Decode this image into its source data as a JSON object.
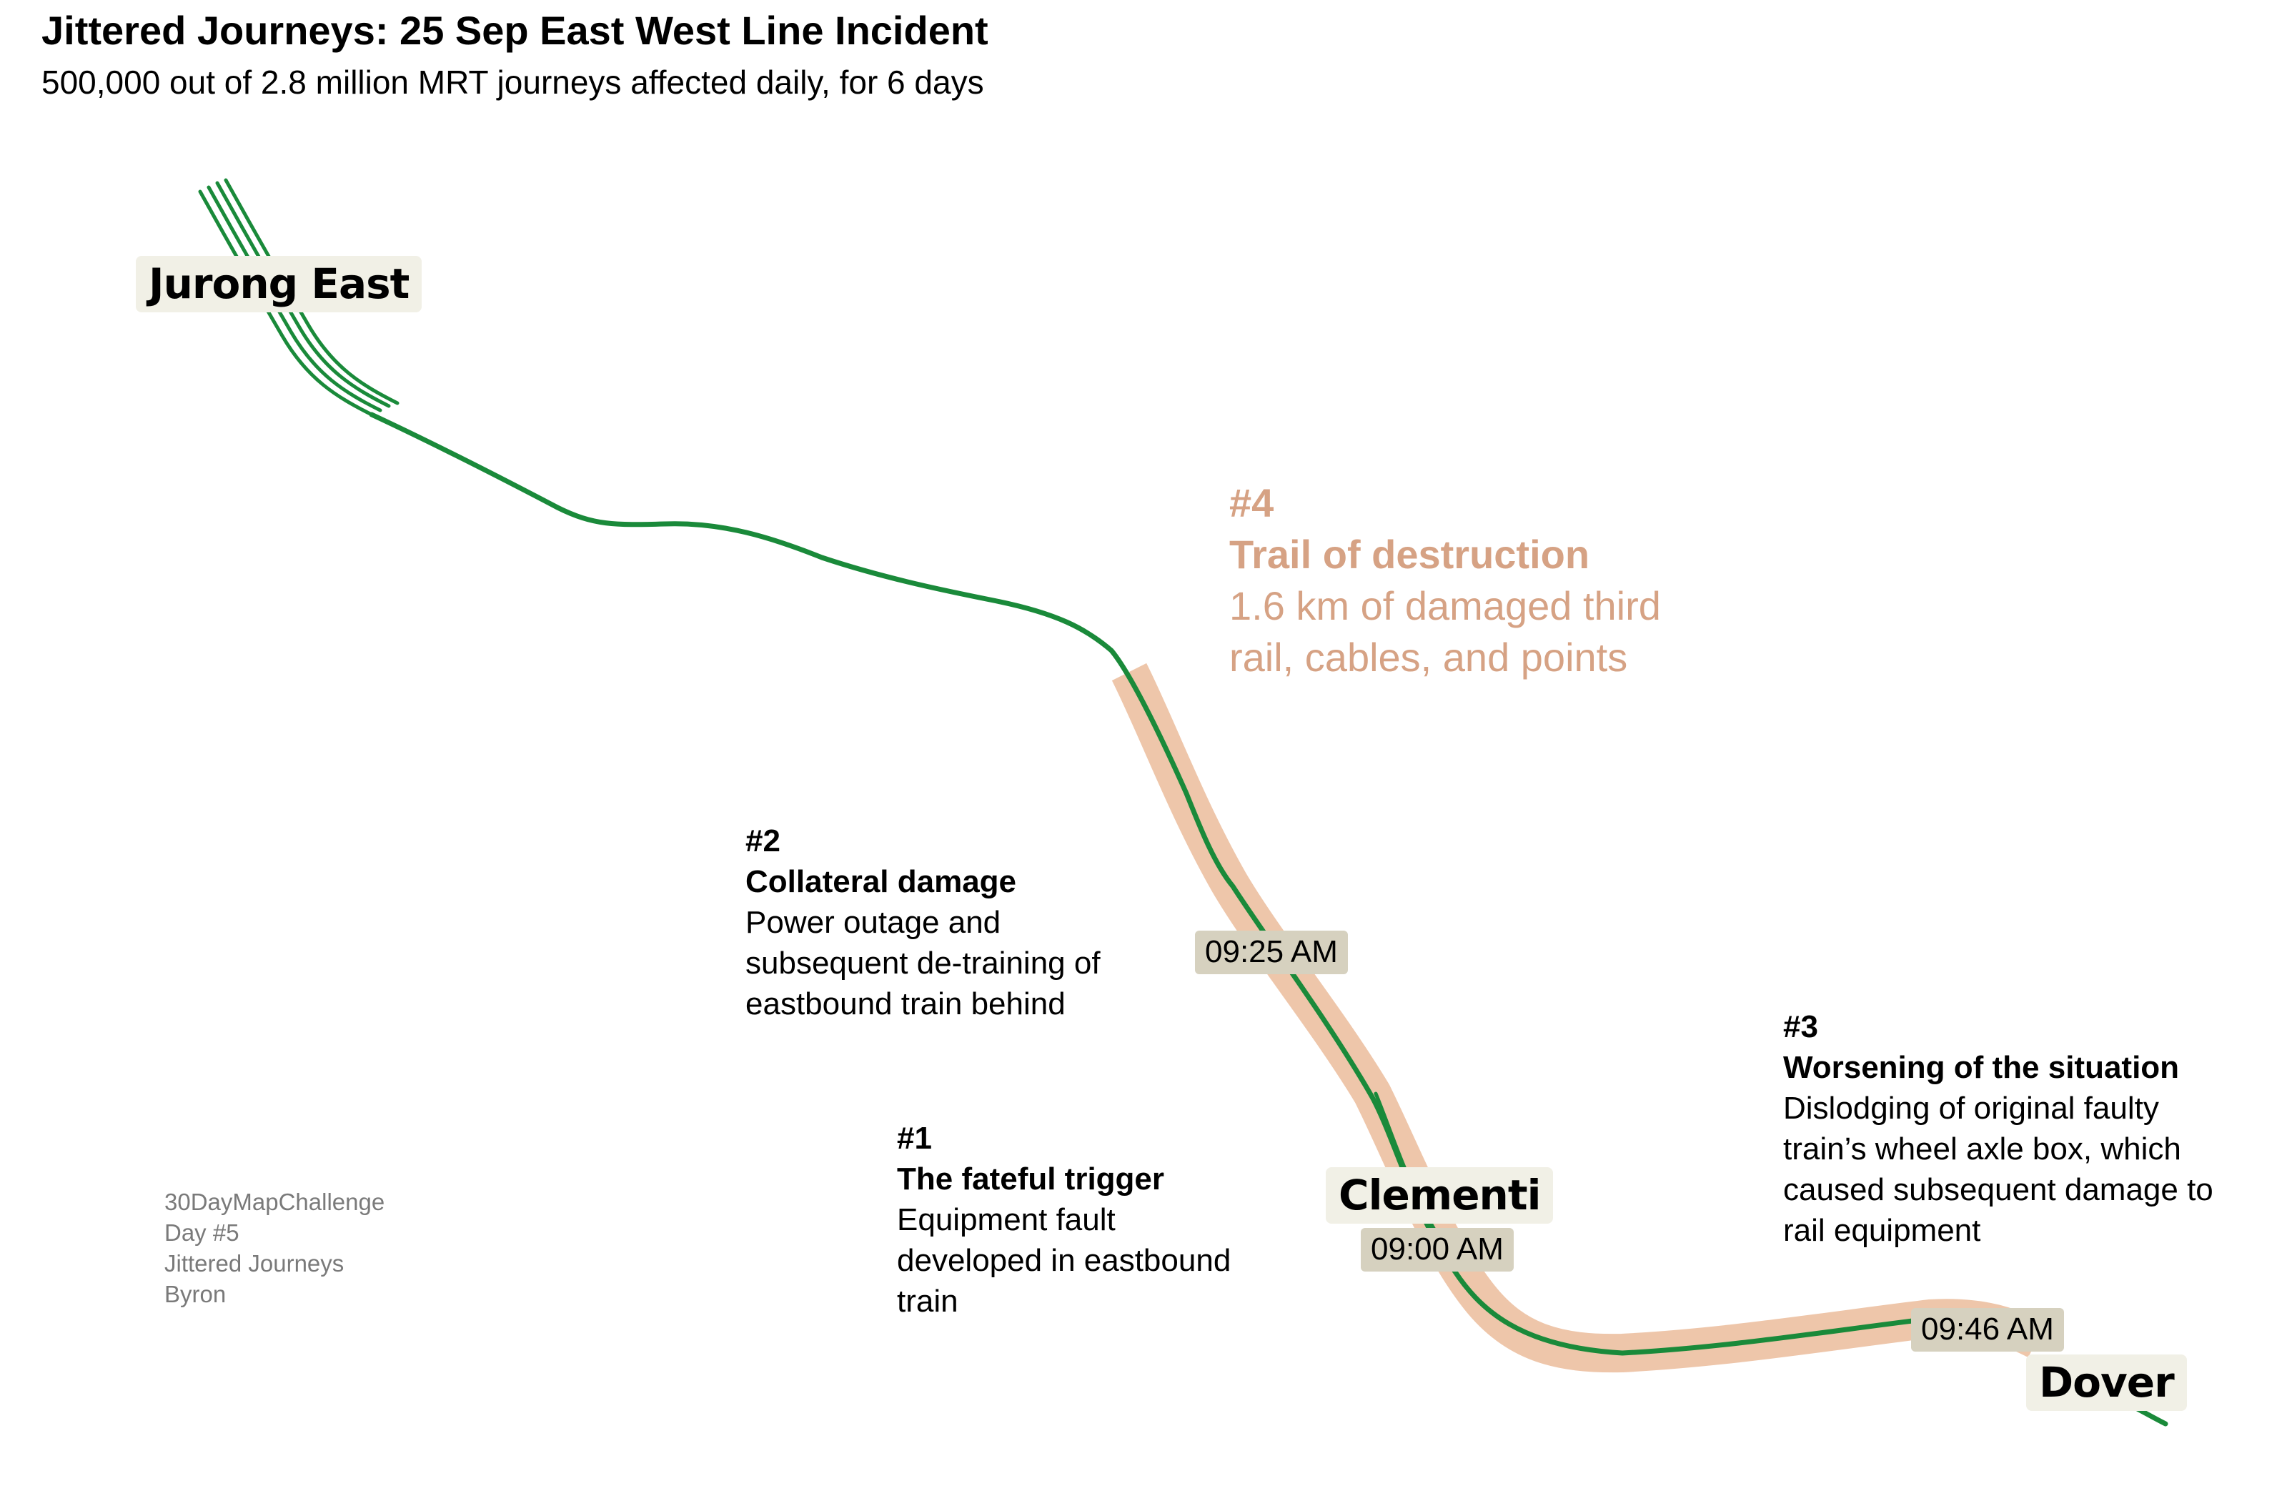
{
  "header": {
    "title": "Jittered Journeys: 25 Sep East West Line Incident",
    "subtitle": "500,000 out of 2.8 million MRT journeys affected daily, for 6 days"
  },
  "colors": {
    "line": "#1a8a3a",
    "damage": "#eec6aa",
    "note4": "#d6a284",
    "station_bg": "#f1f0e6",
    "time_bg": "#d6d1bf"
  },
  "stations": [
    "Jurong East",
    "Clementi",
    "Dover"
  ],
  "times": [
    "09:25 AM",
    "09:00 AM",
    "09:46 AM"
  ],
  "notes": [
    {
      "num": "#1",
      "head": "The fateful trigger",
      "lines": [
        "Equipment fault",
        "developed in eastbound",
        "train"
      ]
    },
    {
      "num": "#2",
      "head": "Collateral damage",
      "lines": [
        "Power outage and",
        "subsequent de-training of",
        "eastbound train behind"
      ]
    },
    {
      "num": "#3",
      "head": "Worsening of the situation",
      "lines": [
        "Dislodging of original faulty",
        "train’s wheel axle box, which",
        "caused subsequent damage to",
        "rail equipment"
      ]
    },
    {
      "num": "#4",
      "head": "Trail of destruction",
      "lines": [
        "1.6 km of damaged third",
        "rail, cables, and points"
      ]
    }
  ],
  "credits": [
    "30DayMapChallenge",
    "Day #5",
    "Jittered Journeys",
    "Byron"
  ]
}
